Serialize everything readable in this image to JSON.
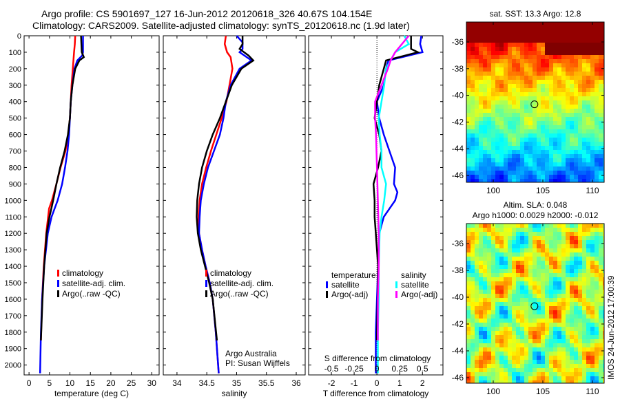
{
  "title_line1": "Argo profile: CS 5901697_127 16-Jun-2012 20120618_326 40.67S 104.154E",
  "title_line2": "Climatology: CARS2009. Satellite-adjusted climatology: synTS_20120618.nc (1.9d later)",
  "colors": {
    "climatology": "#ff0000",
    "satellite": "#0000ff",
    "argo": "#000000",
    "s_satellite": "#00ffff",
    "s_argo": "#ff00ff"
  },
  "depth_ticks": [
    0,
    100,
    200,
    300,
    400,
    500,
    600,
    700,
    800,
    900,
    1000,
    1100,
    1200,
    1300,
    1400,
    1500,
    1600,
    1700,
    1800,
    1900,
    2000
  ],
  "chart_data": [
    {
      "type": "line",
      "xlabel": "temperature (deg C)",
      "xlim": [
        -1.2,
        31.8
      ],
      "ylim": [
        2060,
        0
      ],
      "xticks": [
        0,
        5,
        10,
        15,
        20,
        25,
        30
      ],
      "legend": [
        "climatology",
        "satellite-adj. clim.",
        "Argo(..raw -QC)"
      ],
      "legend_position": "bottom-right",
      "series": [
        {
          "name": "climatology",
          "color": "#ff0000",
          "depth": [
            0,
            50,
            100,
            200,
            300,
            400,
            500,
            600,
            700,
            800,
            900,
            1000,
            1050,
            1200,
            1400,
            1600,
            1850
          ],
          "values": [
            11.3,
            11.2,
            11,
            10.7,
            10.4,
            10.2,
            10,
            9.6,
            8.9,
            7.7,
            6.7,
            5.6,
            4.9,
            4.2,
            3.6,
            3.2,
            2.9
          ]
        },
        {
          "name": "satellite-adj. clim.",
          "color": "#0000ff",
          "depth": [
            0,
            100,
            120,
            150,
            200,
            300,
            400,
            500,
            600,
            700,
            800,
            900,
            1000,
            1100,
            1200,
            1400,
            1600,
            1800,
            2050
          ],
          "values": [
            13.2,
            13.2,
            13,
            11.8,
            11.1,
            10.6,
            10.2,
            10,
            9.8,
            9.4,
            8.8,
            8.1,
            7,
            5.5,
            4.6,
            3.7,
            3.2,
            2.9,
            2.7
          ]
        },
        {
          "name": "Argo(..raw -QC)",
          "color": "#000000",
          "depth": [
            0,
            100,
            130,
            150,
            200,
            300,
            400,
            500,
            600,
            700,
            800,
            900,
            1000,
            1100,
            1200,
            1400,
            1600,
            1850
          ],
          "values": [
            12.7,
            12.9,
            13.4,
            12.3,
            11.3,
            10.6,
            10.2,
            10,
            9.5,
            8.7,
            7.6,
            6.7,
            5.9,
            5,
            4.3,
            3.7,
            3.3,
            2.9
          ]
        }
      ]
    },
    {
      "type": "line",
      "xlabel": "salinity",
      "xlim": [
        33.77,
        36.15
      ],
      "ylim": [
        2060,
        0
      ],
      "xticks": [
        34,
        34.5,
        35,
        35.5,
        36
      ],
      "legend": [
        "climatology",
        "satellite-adj. clim.",
        "Argo(..raw -QC)"
      ],
      "legend_position": "bottom-right",
      "annotation": [
        "Argo Australia",
        "PI: Susan Wijffels"
      ],
      "series": [
        {
          "name": "climatology",
          "color": "#ff0000",
          "depth": [
            0,
            50,
            100,
            130,
            200,
            300,
            400,
            500,
            600,
            700,
            800,
            900,
            1000,
            1100,
            1200,
            1300,
            1400,
            1500,
            1600,
            1800,
            2050
          ],
          "values": [
            34.82,
            34.8,
            34.84,
            34.9,
            34.93,
            34.88,
            34.83,
            34.75,
            34.66,
            34.57,
            34.49,
            34.42,
            34.38,
            34.36,
            34.37,
            34.42,
            34.48,
            34.55,
            34.6,
            34.65,
            34.7
          ]
        },
        {
          "name": "satellite-adj. clim.",
          "color": "#0000ff",
          "depth": [
            0,
            40,
            80,
            100,
            150,
            200,
            300,
            400,
            500,
            600,
            700,
            800,
            900,
            1000,
            1100,
            1200,
            1300,
            1400,
            1500,
            1600,
            1800,
            2050
          ],
          "values": [
            35,
            35.1,
            35.1,
            35.05,
            35.25,
            35.05,
            34.9,
            34.82,
            34.78,
            34.72,
            34.62,
            34.52,
            34.45,
            34.4,
            34.38,
            34.37,
            34.42,
            34.48,
            34.55,
            34.6,
            34.65,
            34.7
          ]
        },
        {
          "name": "Argo(..raw -QC)",
          "color": "#000000",
          "depth": [
            0,
            50,
            80,
            120,
            150,
            200,
            300,
            400,
            500,
            600,
            700,
            800,
            900,
            1000,
            1100,
            1200,
            1300,
            1400,
            1500,
            1600,
            1850
          ],
          "values": [
            35.1,
            35.1,
            35.05,
            35.2,
            35.28,
            35.08,
            34.92,
            34.82,
            34.72,
            34.6,
            34.5,
            34.42,
            34.37,
            34.34,
            34.33,
            34.35,
            34.4,
            34.47,
            34.54,
            34.6,
            34.67
          ]
        }
      ]
    },
    {
      "type": "line",
      "xlabel": "T difference from climatology",
      "xlabel2": "S difference from climatology",
      "xlim": [
        -3.0,
        2.9
      ],
      "xlim_s": [
        -0.75,
        0.725
      ],
      "ylim": [
        2060,
        0
      ],
      "xticks": [
        -2,
        -1,
        0,
        1,
        2
      ],
      "xticks_s": [
        -0.5,
        -0.25,
        0,
        0.25,
        0.5
      ],
      "legend_headers": [
        "temperature",
        "salinity"
      ],
      "legend": [
        "satellite",
        "Argo(-adj)",
        "satellite",
        "Argo(-adj)"
      ],
      "legend_position": "bottom",
      "series": [
        {
          "name": "T satellite",
          "color": "#0000ff",
          "axis": "T",
          "depth": [
            0,
            50,
            100,
            150,
            200,
            300,
            400,
            500,
            600,
            700,
            800,
            900,
            950,
            1000,
            1100,
            1200,
            1400,
            1600,
            1800,
            2050
          ],
          "values": [
            1.95,
            1.9,
            2,
            0.5,
            0.4,
            0.3,
            0,
            0.1,
            0.3,
            0.55,
            0.8,
            0.75,
            0.9,
            0.8,
            0.3,
            0.1,
            0.05,
            0,
            -0.05,
            -0.05
          ]
        },
        {
          "name": "T Argo(-adj)",
          "color": "#000000",
          "axis": "T",
          "depth": [
            0,
            80,
            100,
            150,
            200,
            300,
            400,
            500,
            600,
            700,
            800,
            900,
            1000,
            1100,
            1200,
            1300,
            1400,
            1600,
            1850
          ],
          "values": [
            1.5,
            1.5,
            1.8,
            0.4,
            0.3,
            0.1,
            0,
            -0.1,
            0.1,
            0.2,
            0.05,
            -0.15,
            -0.1,
            -0.1,
            -0.05,
            0,
            0.05,
            0.03,
            0
          ]
        },
        {
          "name": "S satellite",
          "color": "#00ffff",
          "axis": "S",
          "depth": [
            0,
            50,
            100,
            200,
            300,
            400,
            500,
            600,
            700,
            800,
            900,
            1000,
            1100,
            1200,
            1400,
            1600,
            1800,
            2050
          ],
          "values": [
            0.3,
            0.35,
            0.2,
            0.1,
            0.08,
            0.05,
            0.02,
            0.03,
            0.05,
            0.05,
            0.1,
            0.08,
            0.05,
            0.03,
            0.02,
            0.02,
            0.01,
            0.01
          ]
        },
        {
          "name": "S Argo(-adj)",
          "color": "#ff00ff",
          "axis": "S",
          "depth": [
            0,
            100,
            150,
            200,
            300,
            400,
            500,
            600,
            800,
            1000,
            1200,
            1400,
            1600,
            1850
          ],
          "values": [
            0.35,
            0.2,
            0.15,
            0.12,
            0.05,
            -0.02,
            -0.02,
            -0.01,
            0,
            0.01,
            0.02,
            0.02,
            0.01,
            0.01
          ]
        }
      ]
    },
    {
      "type": "heatmap",
      "title": "sat. SST: 13.3 Argo: 12.8",
      "xlim": [
        97.3,
        111.2
      ],
      "ylim": [
        -46.5,
        -34.5
      ],
      "xticks": [
        100,
        105,
        110
      ],
      "yticks": [
        -36,
        -38,
        -40,
        -42,
        -44,
        -46
      ],
      "marker": {
        "lon": 104.154,
        "lat": -40.67
      }
    },
    {
      "type": "heatmap",
      "title": [
        "Altim. SLA: 0.048",
        "Argo h1000: 0.0029 h2000: -0.012"
      ],
      "xlim": [
        97.3,
        111.2
      ],
      "ylim": [
        -46.5,
        -34.5
      ],
      "xticks": [
        100,
        105,
        110
      ],
      "yticks": [
        -36,
        -38,
        -40,
        -42,
        -44,
        -46
      ],
      "marker": {
        "lon": 104.154,
        "lat": -40.67
      }
    }
  ],
  "side_label": "IMOS 24-Jun-2012 17:00:39"
}
